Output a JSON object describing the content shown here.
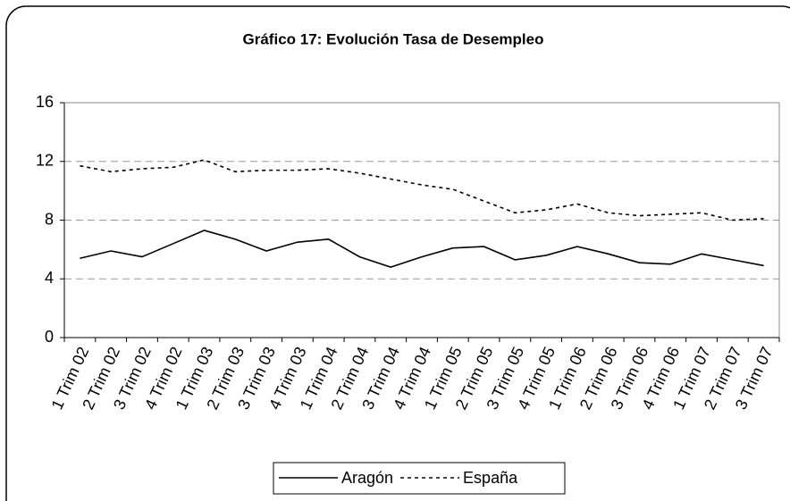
{
  "chart_data": {
    "type": "line",
    "title": "Gráfico 17: Evolución Tasa de Desempleo",
    "categories": [
      "1 Trim 02",
      "2 Trim 02",
      "3 Trim 02",
      "4 Trim 02",
      "1 Trim 03",
      "2 Trim 03",
      "3 Trim 03",
      "4 Trim 03",
      "1 Trim 04",
      "2 Trim 04",
      "3 Trim 04",
      "4 Trim 04",
      "1 Trim 05",
      "2 Trim 05",
      "3 Trim 05",
      "4 Trim 05",
      "1 Trim 06",
      "2 Trim 06",
      "3 Trim 06",
      "4 Trim 06",
      "1 Trim 07",
      "2 Trim 07",
      "3 Trim 07"
    ],
    "series": [
      {
        "name": "Aragón",
        "color": "#000000",
        "dash": "solid",
        "values": [
          5.4,
          5.9,
          5.5,
          6.4,
          7.3,
          6.7,
          5.9,
          6.5,
          6.7,
          5.5,
          4.8,
          5.5,
          6.1,
          6.2,
          5.3,
          5.6,
          6.2,
          5.7,
          5.1,
          5.0,
          5.7,
          5.3,
          4.9
        ]
      },
      {
        "name": "España",
        "color": "#000000",
        "dash": "dotted",
        "values": [
          11.7,
          11.3,
          11.5,
          11.6,
          12.1,
          11.3,
          11.4,
          11.4,
          11.5,
          11.2,
          10.8,
          10.4,
          10.1,
          9.3,
          8.5,
          8.7,
          9.1,
          8.5,
          8.3,
          8.4,
          8.5,
          8.0,
          8.1
        ]
      }
    ],
    "ylim": [
      0,
      16
    ],
    "yticks": [
      0,
      4,
      8,
      12,
      16
    ],
    "grid": true,
    "legend": "bottom"
  }
}
